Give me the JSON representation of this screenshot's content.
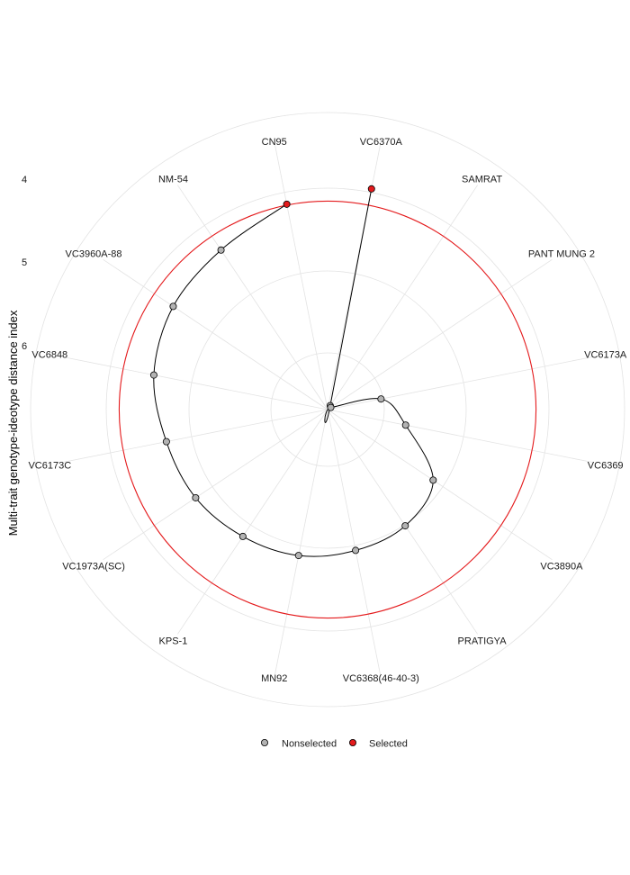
{
  "chart_data": {
    "type": "radar",
    "ylabel": "Multi-trait genotype-ideotype distance index",
    "r_ticks": [
      "4",
      "5",
      "6"
    ],
    "r_tick_values": [
      4,
      5,
      6
    ],
    "r_range": [
      8.4,
      3.65
    ],
    "cutoff": 4.0,
    "cutoff_color": "#e41a1c",
    "categories": [
      "VC6370A",
      "SAMRAT",
      "PANT MUNG 2",
      "VC6173A",
      "VC6369",
      "VC3890A",
      "PRATIGYA",
      "VC6368(46-40-3)",
      "MN92",
      "KPS-1",
      "VC1973A(SC)",
      "VC6173C",
      "VC6848",
      "VC3960A-88",
      "NM-54",
      "CN95"
    ],
    "values": [
      3.65,
      8.3,
      8.32,
      7.25,
      6.72,
      5.72,
      5.45,
      5.37,
      5.26,
      5.18,
      5.05,
      4.93,
      4.66,
      4.48,
      4.35,
      3.98
    ],
    "selected": [
      true,
      false,
      false,
      false,
      false,
      false,
      false,
      false,
      false,
      false,
      false,
      false,
      false,
      false,
      false,
      true
    ],
    "colors": {
      "nonselected": "#b3b3b3",
      "selected": "#e41a1c",
      "line": "#000000",
      "grid": "#e3e3e3"
    },
    "legend": {
      "position": "bottom",
      "items": [
        {
          "label": "Nonselected",
          "color": "#b3b3b3"
        },
        {
          "label": "Selected",
          "color": "#e41a1c"
        }
      ]
    }
  }
}
